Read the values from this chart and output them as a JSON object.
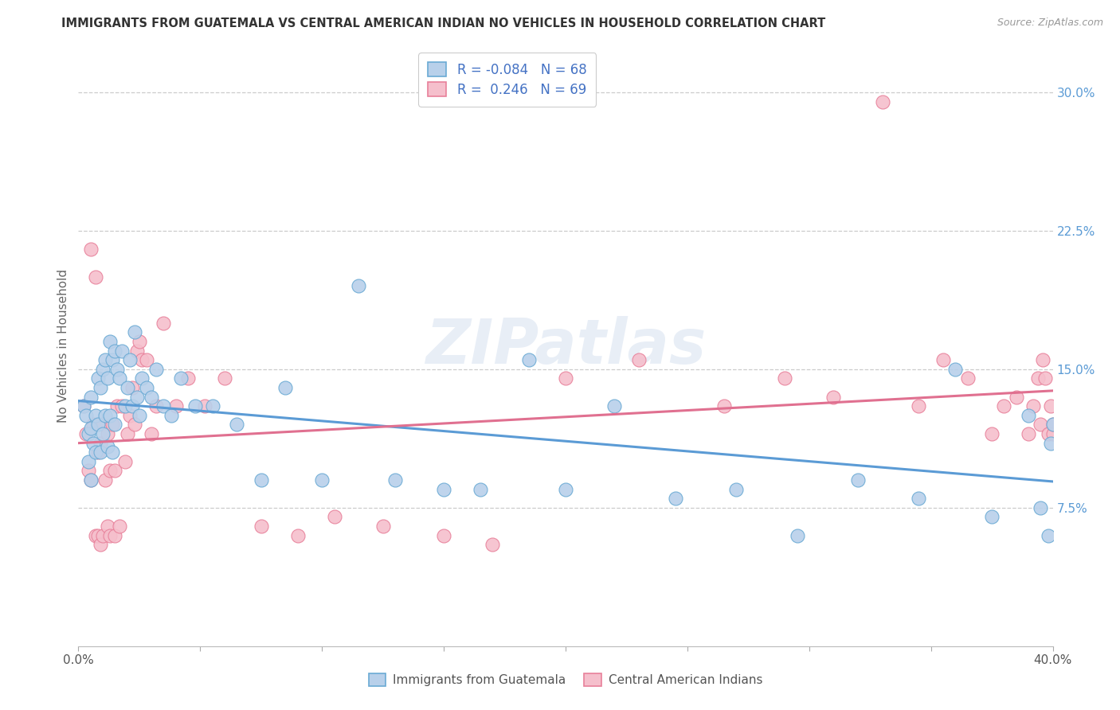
{
  "title": "IMMIGRANTS FROM GUATEMALA VS CENTRAL AMERICAN INDIAN NO VEHICLES IN HOUSEHOLD CORRELATION CHART",
  "source": "Source: ZipAtlas.com",
  "ylabel": "No Vehicles in Household",
  "legend1_R": "-0.084",
  "legend1_N": "68",
  "legend2_R": " 0.246",
  "legend2_N": "69",
  "blue_face": "#b8d0ea",
  "blue_edge": "#6aaad4",
  "pink_face": "#f5bfcc",
  "pink_edge": "#e8809a",
  "blue_line": "#5b9bd5",
  "pink_line": "#e07090",
  "legend_text_color": "#4472c4",
  "watermark": "ZIPatlas",
  "x_min": 0.0,
  "x_max": 0.4,
  "y_min": 0.0,
  "y_max": 0.325,
  "yticks": [
    0.075,
    0.15,
    0.225,
    0.3
  ],
  "ytick_labels": [
    "7.5%",
    "15.0%",
    "22.5%",
    "30.0%"
  ],
  "blue_x": [
    0.002,
    0.003,
    0.004,
    0.004,
    0.005,
    0.005,
    0.005,
    0.006,
    0.007,
    0.007,
    0.008,
    0.008,
    0.009,
    0.009,
    0.01,
    0.01,
    0.011,
    0.011,
    0.012,
    0.012,
    0.013,
    0.013,
    0.014,
    0.014,
    0.015,
    0.015,
    0.016,
    0.017,
    0.018,
    0.019,
    0.02,
    0.021,
    0.022,
    0.023,
    0.024,
    0.025,
    0.026,
    0.028,
    0.03,
    0.032,
    0.035,
    0.038,
    0.042,
    0.048,
    0.055,
    0.065,
    0.075,
    0.085,
    0.1,
    0.115,
    0.13,
    0.15,
    0.165,
    0.185,
    0.2,
    0.22,
    0.245,
    0.27,
    0.295,
    0.32,
    0.345,
    0.36,
    0.375,
    0.39,
    0.395,
    0.398,
    0.399,
    0.4
  ],
  "blue_y": [
    0.13,
    0.125,
    0.115,
    0.1,
    0.135,
    0.118,
    0.09,
    0.11,
    0.125,
    0.105,
    0.145,
    0.12,
    0.14,
    0.105,
    0.15,
    0.115,
    0.155,
    0.125,
    0.145,
    0.108,
    0.165,
    0.125,
    0.155,
    0.105,
    0.16,
    0.12,
    0.15,
    0.145,
    0.16,
    0.13,
    0.14,
    0.155,
    0.13,
    0.17,
    0.135,
    0.125,
    0.145,
    0.14,
    0.135,
    0.15,
    0.13,
    0.125,
    0.145,
    0.13,
    0.13,
    0.12,
    0.09,
    0.14,
    0.09,
    0.195,
    0.09,
    0.085,
    0.085,
    0.155,
    0.085,
    0.13,
    0.08,
    0.085,
    0.06,
    0.09,
    0.08,
    0.15,
    0.07,
    0.125,
    0.075,
    0.06,
    0.11,
    0.12
  ],
  "pink_x": [
    0.002,
    0.003,
    0.004,
    0.005,
    0.005,
    0.006,
    0.007,
    0.007,
    0.008,
    0.008,
    0.009,
    0.009,
    0.01,
    0.01,
    0.011,
    0.012,
    0.012,
    0.013,
    0.013,
    0.014,
    0.015,
    0.015,
    0.016,
    0.017,
    0.018,
    0.019,
    0.02,
    0.021,
    0.022,
    0.023,
    0.024,
    0.025,
    0.026,
    0.028,
    0.03,
    0.032,
    0.035,
    0.04,
    0.045,
    0.052,
    0.06,
    0.075,
    0.09,
    0.105,
    0.125,
    0.15,
    0.17,
    0.2,
    0.23,
    0.265,
    0.29,
    0.31,
    0.33,
    0.345,
    0.355,
    0.365,
    0.375,
    0.38,
    0.385,
    0.39,
    0.392,
    0.394,
    0.395,
    0.396,
    0.397,
    0.398,
    0.399,
    0.4,
    0.4
  ],
  "pink_y": [
    0.13,
    0.115,
    0.095,
    0.215,
    0.09,
    0.12,
    0.2,
    0.06,
    0.105,
    0.06,
    0.11,
    0.055,
    0.12,
    0.06,
    0.09,
    0.115,
    0.065,
    0.095,
    0.06,
    0.12,
    0.095,
    0.06,
    0.13,
    0.065,
    0.13,
    0.1,
    0.115,
    0.125,
    0.14,
    0.12,
    0.16,
    0.165,
    0.155,
    0.155,
    0.115,
    0.13,
    0.175,
    0.13,
    0.145,
    0.13,
    0.145,
    0.065,
    0.06,
    0.07,
    0.065,
    0.06,
    0.055,
    0.145,
    0.155,
    0.13,
    0.145,
    0.135,
    0.295,
    0.13,
    0.155,
    0.145,
    0.115,
    0.13,
    0.135,
    0.115,
    0.13,
    0.145,
    0.12,
    0.155,
    0.145,
    0.115,
    0.13,
    0.115,
    0.12
  ]
}
